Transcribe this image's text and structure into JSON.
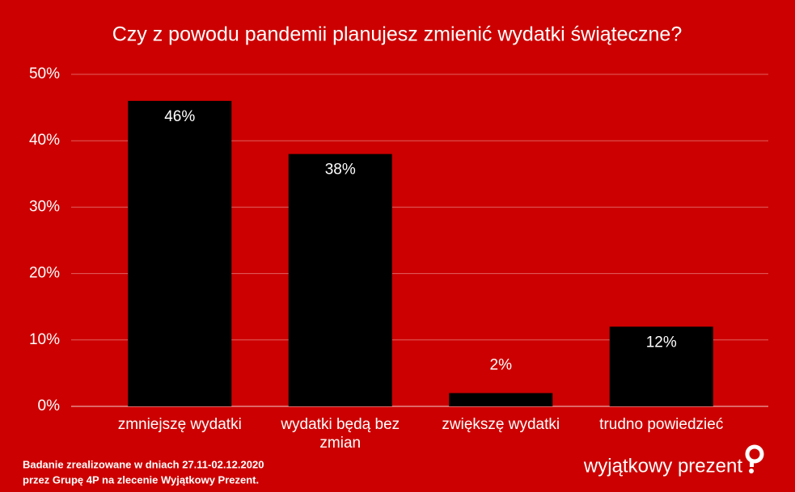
{
  "chart_data": {
    "type": "bar",
    "title": "Czy z powodu pandemii planujesz zmienić wydatki świąteczne?",
    "categories": [
      "zmniejszę wydatki",
      "wydatki będą bez zmian",
      "zwiększę wydatki",
      "trudno powiedzieć"
    ],
    "values": [
      46,
      38,
      2,
      12
    ],
    "value_labels": [
      "46%",
      "38%",
      "2%",
      "12%"
    ],
    "color": "#000000",
    "ylim": [
      0,
      50
    ],
    "yticks": [
      {
        "value": 0,
        "label": "0%"
      },
      {
        "value": 10,
        "label": "10%"
      },
      {
        "value": 20,
        "label": "20%"
      },
      {
        "value": 30,
        "label": "30%"
      },
      {
        "value": 40,
        "label": "40%"
      },
      {
        "value": 50,
        "label": "50%"
      }
    ],
    "grid": true
  },
  "footer": {
    "note_line1": "Badanie zrealizowane w dniach 27.11-02.12.2020",
    "note_line2": "przez Grupę 4P na zlecenie Wyjątkowy Prezent.",
    "logo": "wyjątkowy prezent"
  }
}
